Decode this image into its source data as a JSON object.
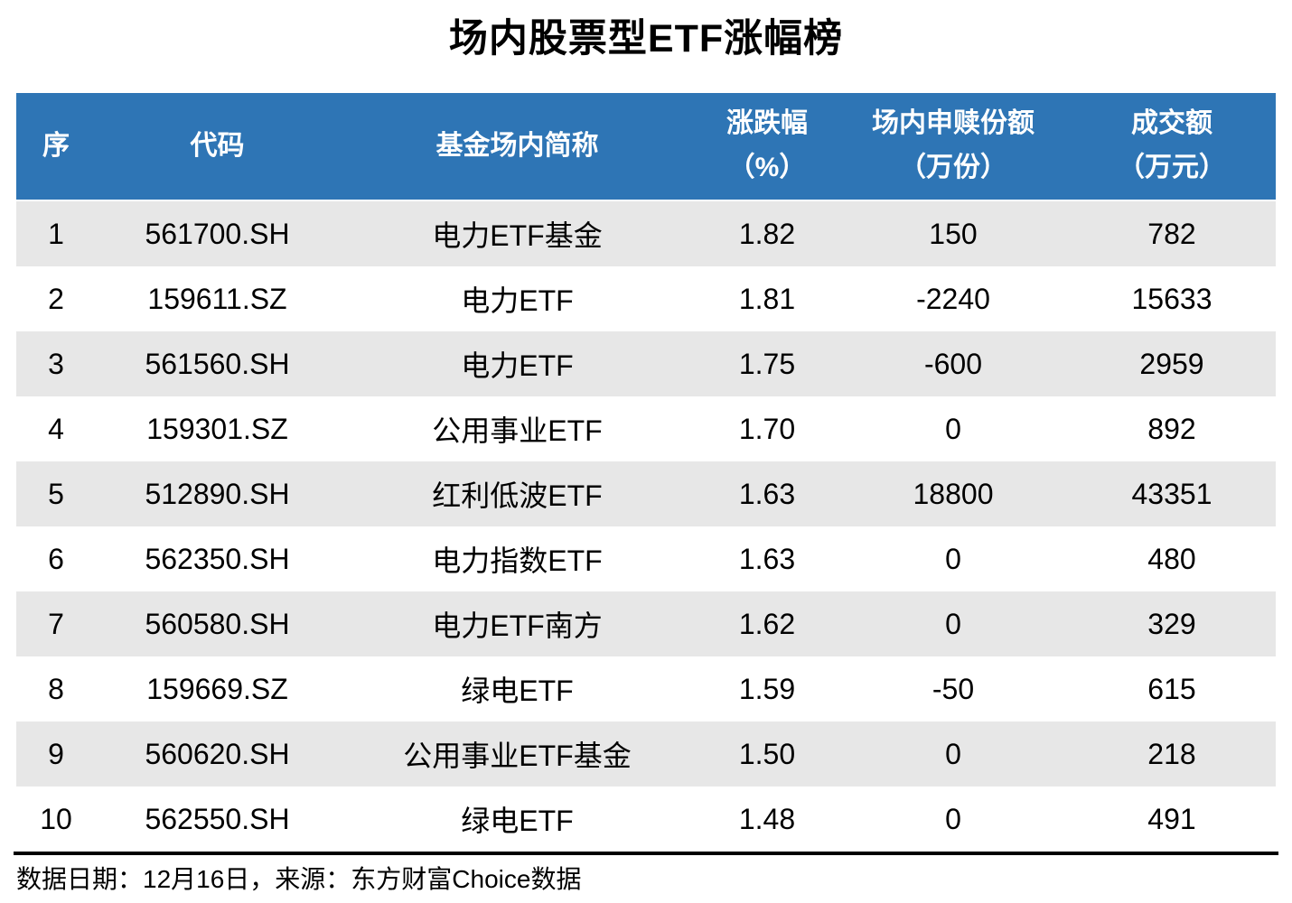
{
  "title": "场内股票型ETF涨幅榜",
  "table": {
    "columns": [
      {
        "label": "序",
        "unit": ""
      },
      {
        "label": "代码",
        "unit": ""
      },
      {
        "label": "基金场内简称",
        "unit": ""
      },
      {
        "label": "涨跌幅",
        "unit": "（%）"
      },
      {
        "label": "场内申赎份额",
        "unit": "（万份）"
      },
      {
        "label": "成交额",
        "unit": "（万元）"
      }
    ],
    "rows": [
      [
        "1",
        "561700.SH",
        "电力ETF基金",
        "1.82",
        "150",
        "782"
      ],
      [
        "2",
        "159611.SZ",
        "电力ETF",
        "1.81",
        "-2240",
        "15633"
      ],
      [
        "3",
        "561560.SH",
        "电力ETF",
        "1.75",
        "-600",
        "2959"
      ],
      [
        "4",
        "159301.SZ",
        "公用事业ETF",
        "1.70",
        "0",
        "892"
      ],
      [
        "5",
        "512890.SH",
        "红利低波ETF",
        "1.63",
        "18800",
        "43351"
      ],
      [
        "6",
        "562350.SH",
        "电力指数ETF",
        "1.63",
        "0",
        "480"
      ],
      [
        "7",
        "560580.SH",
        "电力ETF南方",
        "1.62",
        "0",
        "329"
      ],
      [
        "8",
        "159669.SZ",
        "绿电ETF",
        "1.59",
        "-50",
        "615"
      ],
      [
        "9",
        "560620.SH",
        "公用事业ETF基金",
        "1.50",
        "0",
        "218"
      ],
      [
        "10",
        "562550.SH",
        "绿电ETF",
        "1.48",
        "0",
        "491"
      ]
    ]
  },
  "footer": {
    "text": "数据日期：12月16日，来源：东方财富Choice数据"
  },
  "colors": {
    "header_bg": "#2E75B5",
    "header_text": "#FFFFFF",
    "row_alt_bg": "#E7E7E7",
    "body_text": "#000000"
  }
}
